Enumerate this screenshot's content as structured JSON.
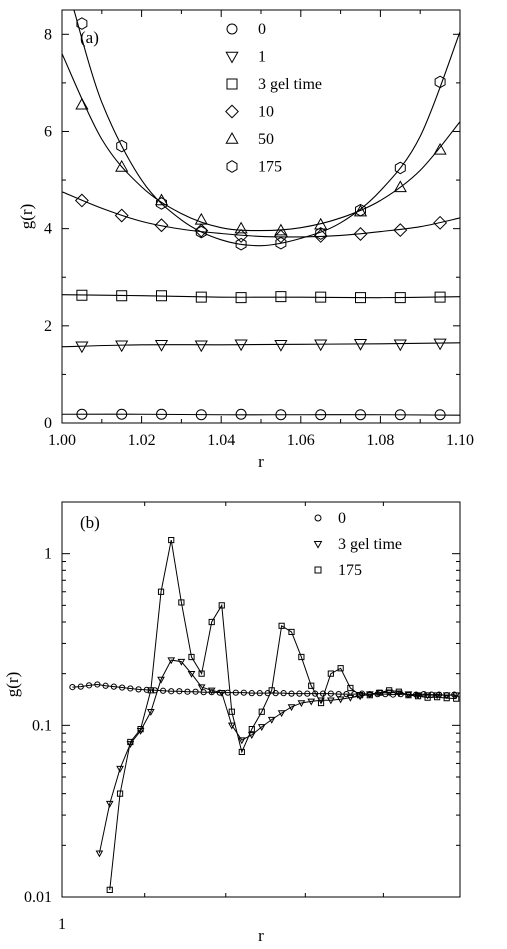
{
  "chart_data": [
    {
      "type": "scatter",
      "panel_label": "(a)",
      "xlabel": "r",
      "ylabel": "g(r)",
      "xlim": [
        1.0,
        1.1
      ],
      "ylim": [
        0,
        8.5
      ],
      "x_ticks": [
        "1.00",
        "1.02",
        "1.04",
        "1.06",
        "1.08",
        "1.10"
      ],
      "y_ticks": [
        "0",
        "2",
        "4",
        "6",
        "8"
      ],
      "legend_position": "top-center",
      "series": [
        {
          "name": "0",
          "marker": "circle",
          "x": [
            1.005,
            1.015,
            1.025,
            1.035,
            1.045,
            1.055,
            1.065,
            1.075,
            1.085,
            1.095
          ],
          "values": [
            0.18,
            0.18,
            0.18,
            0.17,
            0.18,
            0.17,
            0.17,
            0.17,
            0.17,
            0.17
          ],
          "curve": [
            [
              1.0,
              0.18
            ],
            [
              1.02,
              0.18
            ],
            [
              1.04,
              0.17
            ],
            [
              1.06,
              0.17
            ],
            [
              1.08,
              0.17
            ],
            [
              1.1,
              0.16
            ]
          ]
        },
        {
          "name": "1",
          "marker": "triangle-down",
          "x": [
            1.005,
            1.015,
            1.025,
            1.035,
            1.045,
            1.055,
            1.065,
            1.075,
            1.085,
            1.095
          ],
          "values": [
            1.58,
            1.6,
            1.61,
            1.6,
            1.62,
            1.61,
            1.62,
            1.63,
            1.62,
            1.64
          ],
          "curve": [
            [
              1.0,
              1.57
            ],
            [
              1.02,
              1.61
            ],
            [
              1.04,
              1.61
            ],
            [
              1.06,
              1.62
            ],
            [
              1.08,
              1.63
            ],
            [
              1.1,
              1.65
            ]
          ]
        },
        {
          "name": "3 gel time",
          "marker": "square",
          "x": [
            1.005,
            1.015,
            1.025,
            1.035,
            1.045,
            1.055,
            1.065,
            1.075,
            1.085,
            1.095
          ],
          "values": [
            2.63,
            2.62,
            2.62,
            2.59,
            2.58,
            2.6,
            2.59,
            2.58,
            2.58,
            2.59
          ],
          "curve": [
            [
              1.0,
              2.64
            ],
            [
              1.02,
              2.62
            ],
            [
              1.04,
              2.59
            ],
            [
              1.06,
              2.59
            ],
            [
              1.08,
              2.58
            ],
            [
              1.1,
              2.6
            ]
          ]
        },
        {
          "name": "10",
          "marker": "diamond",
          "x": [
            1.005,
            1.015,
            1.025,
            1.035,
            1.045,
            1.055,
            1.065,
            1.075,
            1.085,
            1.095
          ],
          "values": [
            4.58,
            4.27,
            4.07,
            3.96,
            3.85,
            3.84,
            3.85,
            3.89,
            3.97,
            4.12
          ],
          "curve": [
            [
              1.0,
              4.76
            ],
            [
              1.01,
              4.42
            ],
            [
              1.02,
              4.15
            ],
            [
              1.03,
              3.99
            ],
            [
              1.04,
              3.9
            ],
            [
              1.05,
              3.84
            ],
            [
              1.06,
              3.83
            ],
            [
              1.07,
              3.86
            ],
            [
              1.08,
              3.94
            ],
            [
              1.09,
              4.04
            ],
            [
              1.1,
              4.22
            ]
          ]
        },
        {
          "name": "50",
          "marker": "triangle-up",
          "x": [
            1.005,
            1.015,
            1.025,
            1.035,
            1.045,
            1.055,
            1.065,
            1.075,
            1.085,
            1.095
          ],
          "values": [
            6.55,
            5.27,
            4.58,
            4.18,
            4.0,
            3.96,
            4.08,
            4.35,
            4.85,
            5.62
          ],
          "curve": [
            [
              1.0,
              7.6
            ],
            [
              1.01,
              5.84
            ],
            [
              1.02,
              4.86
            ],
            [
              1.03,
              4.31
            ],
            [
              1.04,
              4.02
            ],
            [
              1.05,
              3.96
            ],
            [
              1.06,
              4.02
            ],
            [
              1.07,
              4.22
            ],
            [
              1.08,
              4.58
            ],
            [
              1.09,
              5.2
            ],
            [
              1.1,
              6.2
            ]
          ]
        },
        {
          "name": "175",
          "marker": "hexagon",
          "x": [
            1.005,
            1.015,
            1.025,
            1.035,
            1.045,
            1.055,
            1.065,
            1.075,
            1.085,
            1.095
          ],
          "values": [
            8.22,
            5.7,
            4.52,
            3.93,
            3.68,
            3.7,
            3.9,
            4.38,
            5.25,
            7.02
          ],
          "curve": [
            [
              1.003,
              8.5
            ],
            [
              1.01,
              6.6
            ],
            [
              1.02,
              5.0
            ],
            [
              1.03,
              4.18
            ],
            [
              1.04,
              3.77
            ],
            [
              1.05,
              3.65
            ],
            [
              1.06,
              3.8
            ],
            [
              1.07,
              4.12
            ],
            [
              1.08,
              4.78
            ],
            [
              1.09,
              5.9
            ],
            [
              1.1,
              8.05
            ]
          ]
        }
      ]
    },
    {
      "type": "scatter",
      "panel_label": "(b)",
      "xlabel": "r",
      "ylabel": "g(r)",
      "xscale": "log",
      "yscale": "log",
      "xlim": [
        1.0,
        1.1
      ],
      "ylim": [
        0.01,
        2.0
      ],
      "x_ticks": [
        "1"
      ],
      "y_ticks": [
        "0.01",
        "0.1",
        "1"
      ],
      "legend_position": "top-right",
      "series": [
        {
          "name": "0",
          "marker": "circle",
          "x": [
            1.0025,
            1.0045,
            1.0065,
            1.0085,
            1.0105,
            1.0125,
            1.0145,
            1.0165,
            1.0185,
            1.0205,
            1.0225,
            1.0245,
            1.0265,
            1.0285,
            1.0305,
            1.0325,
            1.0345,
            1.0365,
            1.0385,
            1.0405,
            1.0425,
            1.0445,
            1.0465,
            1.0485,
            1.0505,
            1.0525,
            1.0545,
            1.0565,
            1.0585,
            1.0605,
            1.0625,
            1.0645,
            1.0665,
            1.0685,
            1.0705,
            1.0725,
            1.0745,
            1.0765,
            1.0785,
            1.0805,
            1.0825,
            1.0845,
            1.0865,
            1.0885,
            1.0905,
            1.0925,
            1.0945,
            1.0965,
            1.0985
          ],
          "values": [
            0.167,
            0.168,
            0.171,
            0.173,
            0.17,
            0.168,
            0.166,
            0.164,
            0.162,
            0.161,
            0.16,
            0.159,
            0.158,
            0.158,
            0.157,
            0.157,
            0.156,
            0.156,
            0.155,
            0.155,
            0.155,
            0.155,
            0.154,
            0.154,
            0.154,
            0.154,
            0.154,
            0.153,
            0.153,
            0.153,
            0.153,
            0.153,
            0.153,
            0.152,
            0.152,
            0.152,
            0.153,
            0.152,
            0.152,
            0.152,
            0.151,
            0.152,
            0.151,
            0.151,
            0.152,
            0.151,
            0.151,
            0.15,
            0.151
          ]
        },
        {
          "name": "3 gel time",
          "marker": "triangle-down",
          "x": [
            1.009,
            1.0115,
            1.014,
            1.0165,
            1.019,
            1.0215,
            1.024,
            1.0265,
            1.029,
            1.0315,
            1.034,
            1.0365,
            1.039,
            1.0415,
            1.044,
            1.0465,
            1.049,
            1.0515,
            1.054,
            1.0565,
            1.059,
            1.0615,
            1.064,
            1.0665,
            1.069,
            1.0715,
            1.074,
            1.0765,
            1.079,
            1.0815,
            1.084,
            1.0865,
            1.089,
            1.0915,
            1.094,
            1.0965,
            1.099
          ],
          "values": [
            0.018,
            0.035,
            0.056,
            0.078,
            0.093,
            0.12,
            0.185,
            0.24,
            0.235,
            0.2,
            0.167,
            0.16,
            0.155,
            0.1,
            0.082,
            0.088,
            0.098,
            0.108,
            0.118,
            0.128,
            0.135,
            0.138,
            0.14,
            0.14,
            0.142,
            0.145,
            0.148,
            0.152,
            0.155,
            0.156,
            0.154,
            0.152,
            0.15,
            0.15,
            0.15,
            0.15,
            0.15
          ]
        },
        {
          "name": "175",
          "marker": "square",
          "x": [
            1.0115,
            1.014,
            1.0165,
            1.019,
            1.0215,
            1.024,
            1.0265,
            1.029,
            1.0315,
            1.034,
            1.0365,
            1.039,
            1.0415,
            1.044,
            1.0465,
            1.049,
            1.0515,
            1.054,
            1.0565,
            1.059,
            1.0615,
            1.064,
            1.0665,
            1.069,
            1.0715,
            1.074,
            1.0765,
            1.079,
            1.0815,
            1.084,
            1.0865,
            1.089,
            1.0915,
            1.094,
            1.0965,
            1.099
          ],
          "values": [
            0.011,
            0.04,
            0.08,
            0.095,
            0.16,
            0.6,
            1.2,
            0.52,
            0.25,
            0.2,
            0.4,
            0.5,
            0.12,
            0.07,
            0.095,
            0.12,
            0.16,
            0.38,
            0.35,
            0.25,
            0.17,
            0.135,
            0.2,
            0.215,
            0.165,
            0.15,
            0.15,
            0.155,
            0.16,
            0.157,
            0.15,
            0.148,
            0.145,
            0.146,
            0.144,
            0.143
          ]
        }
      ]
    }
  ]
}
